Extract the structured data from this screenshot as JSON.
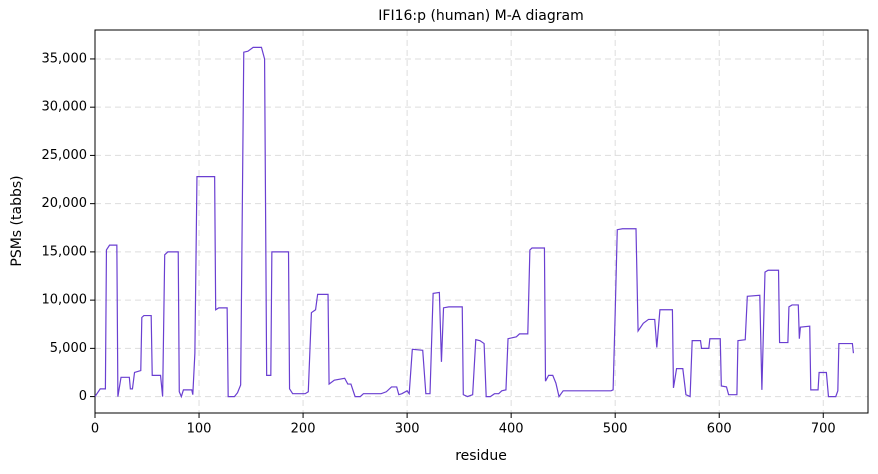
{
  "chart_data": {
    "type": "line",
    "title": "IFI16:p (human) M-A diagram",
    "x_label": "residue",
    "y_label": "PSMs (tabbs)",
    "color": "#6a3fd1",
    "grid": true,
    "x": [
      0,
      5,
      10,
      11,
      14,
      21,
      22,
      25,
      33,
      34,
      36,
      38,
      44,
      45,
      47,
      54,
      55,
      63,
      65,
      67,
      70,
      80,
      81,
      83,
      85,
      93,
      94,
      96,
      98,
      115,
      116,
      119,
      127,
      128,
      134,
      137,
      140,
      143,
      147,
      152,
      160,
      163,
      165,
      169,
      170,
      186,
      187,
      190,
      202,
      205,
      208,
      212,
      214,
      224,
      225,
      230,
      240,
      243,
      246,
      250,
      255,
      258,
      275,
      280,
      285,
      290,
      292,
      295,
      300,
      302,
      305,
      315,
      318,
      322,
      325,
      331,
      333,
      335,
      340,
      353,
      354,
      358,
      363,
      366,
      370,
      374,
      376,
      380,
      384,
      388,
      391,
      395,
      397,
      405,
      408,
      416,
      418,
      420,
      432,
      433,
      436,
      440,
      443,
      446,
      450,
      496,
      498,
      500,
      502,
      507,
      520,
      522,
      527,
      532,
      538,
      540,
      543,
      555,
      556,
      559,
      565,
      568,
      572,
      574,
      582,
      583,
      590,
      591,
      601,
      602,
      607,
      609,
      617,
      618,
      625,
      627,
      639,
      641,
      644,
      647,
      657,
      658,
      666,
      667,
      670,
      676,
      677,
      678,
      687,
      688,
      695,
      696,
      703,
      705,
      712,
      714,
      715,
      728,
      729
    ],
    "values": [
      0,
      800,
      800,
      15200,
      15700,
      15700,
      0,
      2000,
      2000,
      800,
      800,
      2500,
      2700,
      8200,
      8400,
      8400,
      2200,
      2200,
      0,
      14700,
      15000,
      15000,
      500,
      0,
      700,
      700,
      200,
      4500,
      22800,
      22800,
      9000,
      9200,
      9200,
      0,
      0,
      400,
      1200,
      35700,
      35800,
      36200,
      36200,
      35000,
      2200,
      2200,
      15000,
      15000,
      800,
      300,
      300,
      500,
      8700,
      9000,
      10600,
      10600,
      1300,
      1700,
      1900,
      1300,
      1300,
      0,
      0,
      300,
      300,
      500,
      1000,
      1000,
      200,
      300,
      600,
      300,
      4900,
      4800,
      300,
      300,
      10700,
      10800,
      3600,
      9200,
      9300,
      9300,
      200,
      0,
      200,
      5900,
      5800,
      5500,
      0,
      0,
      300,
      300,
      600,
      700,
      6000,
      6200,
      6500,
      6500,
      15200,
      15400,
      15400,
      1600,
      2200,
      2200,
      1400,
      0,
      600,
      600,
      700,
      8700,
      17300,
      17400,
      17400,
      6800,
      7600,
      8000,
      8000,
      5100,
      9000,
      9000,
      900,
      2900,
      2900,
      200,
      0,
      5800,
      5800,
      5000,
      5000,
      6000,
      6000,
      1100,
      1000,
      200,
      200,
      5800,
      5900,
      10400,
      10500,
      700,
      12900,
      13100,
      13100,
      5600,
      5600,
      9300,
      9500,
      9500,
      6000,
      7200,
      7300,
      700,
      700,
      2500,
      2500,
      0,
      0,
      600,
      5500,
      5500,
      4500
    ],
    "xlim": [
      0,
      743
    ],
    "ylim": [
      -1700,
      38000
    ],
    "xticks": [
      0,
      100,
      200,
      300,
      400,
      500,
      600,
      700
    ],
    "yticks": [
      0,
      {
        "value": 5000,
        "label": "5,000"
      },
      {
        "value": 10000,
        "label": "10,000"
      },
      {
        "value": 15000,
        "label": "15,000"
      },
      {
        "value": 20000,
        "label": "20,000"
      },
      {
        "value": 25000,
        "label": "25,000"
      },
      {
        "value": 30000,
        "label": "30,000"
      },
      {
        "value": 35000,
        "label": "35,000"
      }
    ]
  }
}
